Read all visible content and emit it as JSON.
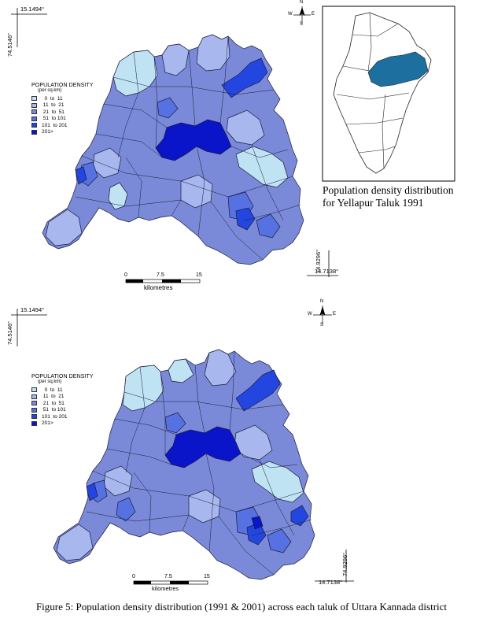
{
  "colors": {
    "class_0_11": "#bfe3f3",
    "class_11_21": "#a8b8ee",
    "class_21_51": "#7a8ad8",
    "class_51_101": "#5672e2",
    "class_101_201": "#2446e0",
    "class_201plus": "#0a14c8",
    "inset_highlight": "#1d6f9f",
    "boundary": "#1a1a3a"
  },
  "legend": {
    "title": "POPULATION DENSITY",
    "unit": "(per sq.km)",
    "items": [
      {
        "label": "  0  to  11",
        "color_key": "class_0_11"
      },
      {
        "label": " 11  to  21",
        "color_key": "class_11_21"
      },
      {
        "label": " 21  to  51",
        "color_key": "class_21_51"
      },
      {
        "label": " 51  to 101",
        "color_key": "class_51_101"
      },
      {
        "label": "101  to 201",
        "color_key": "class_101_201"
      },
      {
        "label": "201>",
        "color_key": "class_201plus"
      }
    ]
  },
  "map1": {
    "coord_top": "15.1494°",
    "coord_left": "74.5146°",
    "coord_bottom": "14.7138°",
    "coord_right": "74.9296°",
    "scale_ticks": [
      "0",
      "7.5",
      "15"
    ],
    "scale_unit": "kilometres",
    "compass": {
      "n": "N",
      "s": "S",
      "e": "E",
      "w": "W"
    }
  },
  "map2": {
    "coord_top": "15.1494°",
    "coord_left": "74.5146°",
    "coord_bottom": "14.7138°",
    "coord_right": "74.9296°",
    "scale_ticks": [
      "0",
      "7.5",
      "15"
    ],
    "scale_unit": "kilometres",
    "compass": {
      "n": "N",
      "s": "S",
      "e": "E",
      "w": "W"
    }
  },
  "side_caption": "Population density distribution for Yellapur Taluk 1991",
  "figure_caption": "Figure 5: Population density distribution (1991 & 2001) across each taluk of Uttara Kannada district"
}
